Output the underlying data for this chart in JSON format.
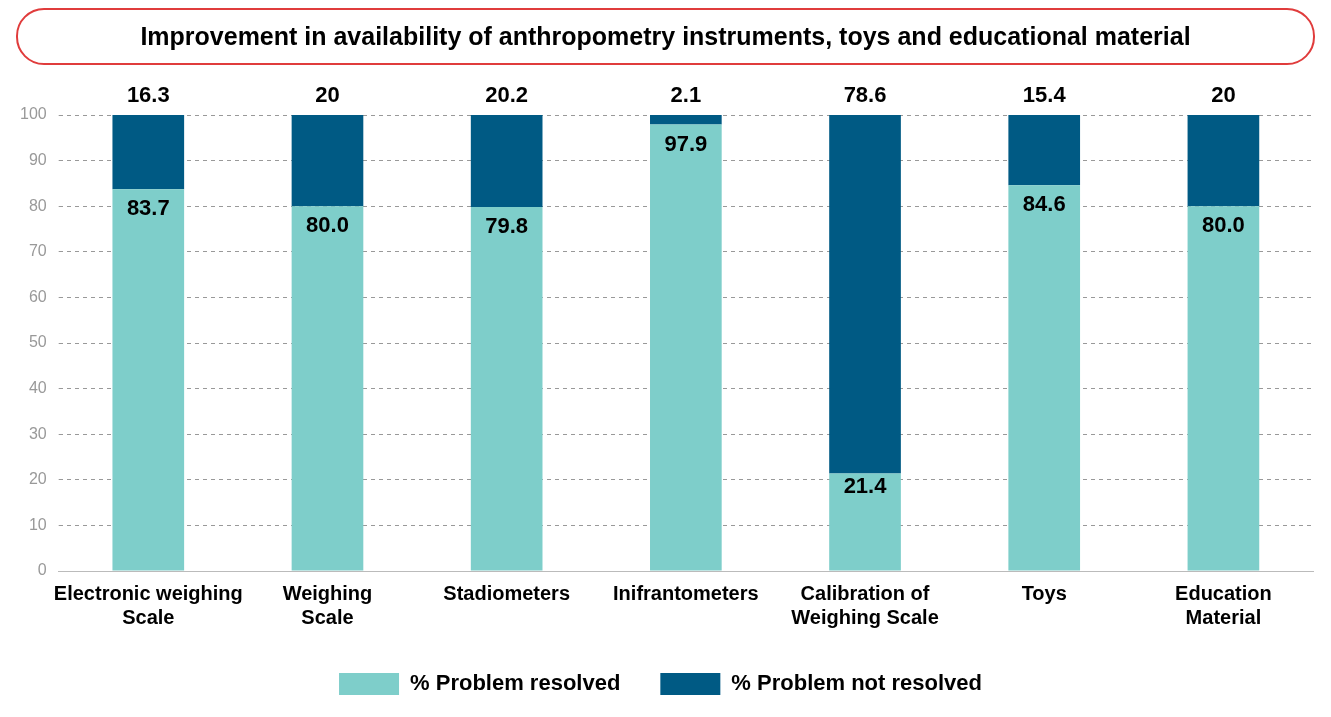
{
  "chart_data": {
    "type": "bar",
    "title": "Improvement in availability of anthropometry instruments, toys and educational material",
    "categories": [
      "Electronic weighing Scale",
      "Weighing Scale",
      "Stadiometers",
      "Inifrantometers",
      "Calibration of Weighing Scale",
      "Toys",
      "Education Material"
    ],
    "series": [
      {
        "name": "% Problem resolved",
        "color": "#7ececa",
        "values": [
          83.7,
          80.0,
          79.8,
          97.9,
          21.4,
          84.6,
          80.0
        ],
        "value_labels": [
          "83.7",
          "80.0",
          "79.8",
          "97.9",
          "21.4",
          "84.6",
          "80.0"
        ]
      },
      {
        "name": "% Problem not resolved",
        "color": "#005a84",
        "values": [
          16.3,
          20,
          20.2,
          2.1,
          78.6,
          15.4,
          20
        ],
        "value_labels": [
          "16.3",
          "20",
          "20.2",
          "2.1",
          "78.6",
          "15.4",
          "20"
        ]
      }
    ],
    "stacked": true,
    "ylim": [
      0,
      100
    ],
    "yticks": [
      0,
      10,
      20,
      30,
      40,
      50,
      60,
      70,
      80,
      90,
      100
    ],
    "grid": "y",
    "legend": "bottom"
  }
}
